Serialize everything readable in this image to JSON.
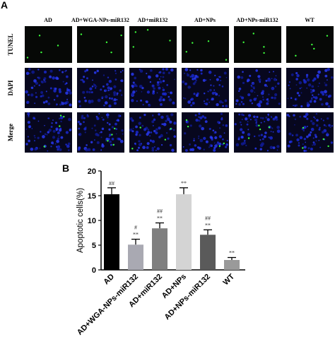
{
  "panel_a": {
    "label": "A",
    "columns": [
      "AD",
      "AD+WGA-NPs-miR132",
      "AD+miR132",
      "AD+NPs",
      "AD+NPs-miR132",
      "WT"
    ],
    "rows": [
      "TUNEL",
      "DAPI",
      "Merge"
    ]
  },
  "chart_data": {
    "type": "bar",
    "panel_label": "B",
    "ylabel": "Apoptotic cells(%)",
    "categories": [
      "AD",
      "AD+WGA-NPs-miR132",
      "AD+miR132",
      "AD+NPs",
      "AD+NPs-miR132",
      "WT"
    ],
    "values": [
      15.3,
      5.1,
      8.4,
      15.3,
      7.1,
      2.0
    ],
    "errors": [
      1.3,
      1.1,
      1.1,
      1.3,
      1.0,
      0.5
    ],
    "colors": [
      "#000000",
      "#a9a9b2",
      "#7f7f7f",
      "#d4d4d4",
      "#5a5a5a",
      "#9a9a9a"
    ],
    "sig_labels": [
      [
        "##"
      ],
      [
        "#",
        "**"
      ],
      [
        "##",
        "**"
      ],
      [
        "**"
      ],
      [
        "##",
        "**"
      ],
      [
        "**"
      ]
    ],
    "ylim": [
      0,
      20
    ],
    "yticks": [
      0,
      5,
      10,
      15,
      20
    ]
  }
}
